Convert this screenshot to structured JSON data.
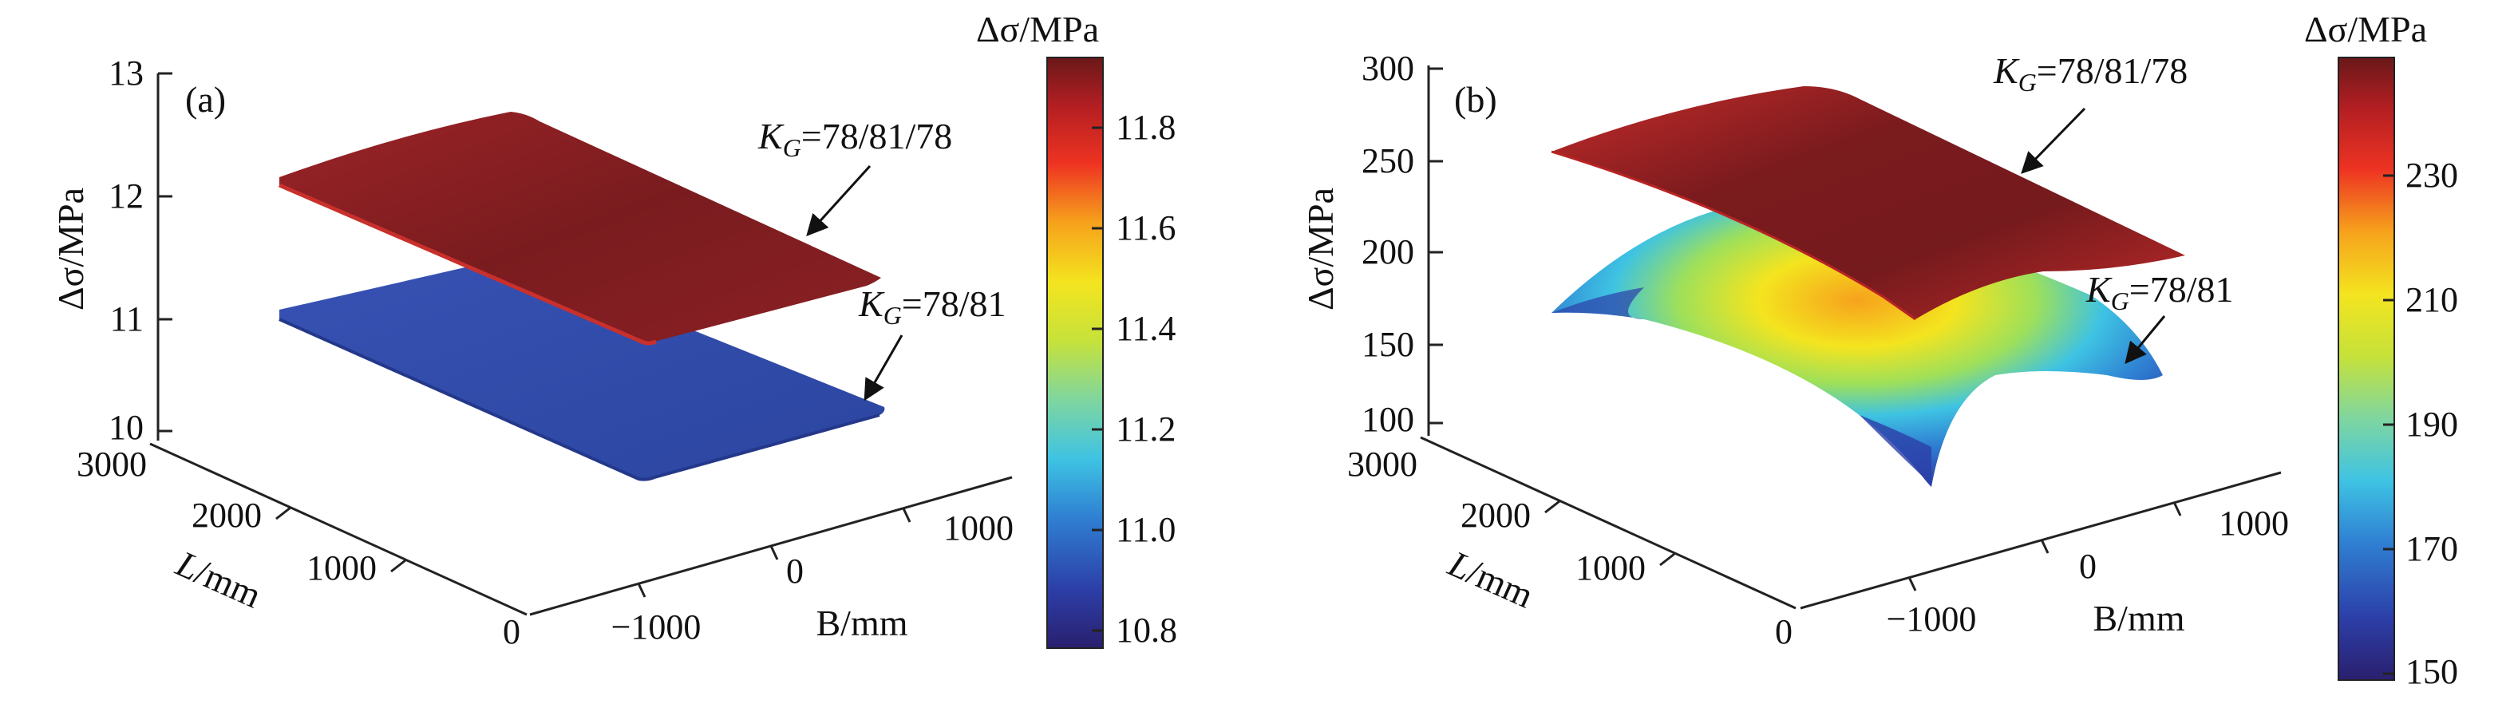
{
  "chart_data": [
    {
      "panel": "(a)",
      "type": "surface",
      "axes": {
        "x": {
          "label_italic": "L",
          "label_rest": "/mm",
          "ticks": [
            "0",
            "1000",
            "2000",
            "3000"
          ],
          "range": [
            0,
            3000
          ]
        },
        "y": {
          "label": "B/mm",
          "ticks": [
            "−1000",
            "0",
            "1000"
          ],
          "range": [
            -1500,
            1500
          ]
        },
        "z": {
          "label": "Δσ/MPa",
          "ticks": [
            "10",
            "11",
            "12",
            "13"
          ],
          "range": [
            10,
            13
          ]
        }
      },
      "colorbar": {
        "title": "Δσ/MPa",
        "ticks": [
          "10.8",
          "11.0",
          "11.2",
          "11.4",
          "11.6",
          "11.8"
        ],
        "range": [
          10.75,
          11.93
        ]
      },
      "series": [
        {
          "name": "K_G=78/81/78",
          "name_sub": "G",
          "name_value": "=78/81/78",
          "approx_value": 11.9,
          "color": "#7b1c1f"
        },
        {
          "name": "K_G=78/81",
          "name_sub": "G",
          "name_value": "=78/81",
          "approx_value": 10.85,
          "color": "#2f4aa8"
        }
      ]
    },
    {
      "panel": "(b)",
      "type": "surface",
      "axes": {
        "x": {
          "label_italic": "L",
          "label_rest": "/mm",
          "ticks": [
            "0",
            "1000",
            "2000",
            "3000"
          ],
          "range": [
            0,
            3000
          ]
        },
        "y": {
          "label": "B/mm",
          "ticks": [
            "−1000",
            "0",
            "1000"
          ],
          "range": [
            -1500,
            1500
          ]
        },
        "z": {
          "label": "Δσ/MPa",
          "ticks": [
            "100",
            "150",
            "200",
            "250",
            "300"
          ],
          "range": [
            100,
            300
          ]
        }
      },
      "colorbar": {
        "title": "Δσ/MPa",
        "ticks": [
          "150",
          "170",
          "190",
          "210",
          "230"
        ],
        "range": [
          148,
          248
        ]
      },
      "series": [
        {
          "name": "K_G=78/81/78",
          "name_sub": "G",
          "name_value": "=78/81/78",
          "approx_range": [
            235,
            248
          ],
          "color": "#7b1c1f"
        },
        {
          "name": "K_G=78/81",
          "name_sub": "G",
          "name_value": "=78/81",
          "approx_range": [
            150,
            230
          ],
          "color": "multi"
        }
      ]
    }
  ]
}
